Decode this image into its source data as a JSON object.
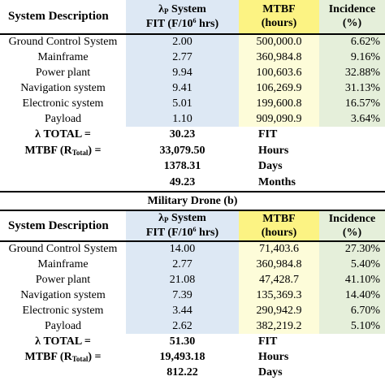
{
  "colors": {
    "fit_column": "#dde8f4",
    "mtbf_column": "#fdfcd9",
    "mtbf_header": "#fcf383",
    "incidence_column": "#e5efda",
    "lambda_total": "#39d6f5",
    "mtbf_total": "#fdfa9b",
    "days": "#c8d9ec",
    "months": "#f6c7a7"
  },
  "headers": {
    "description": "System Description",
    "fit_line1_pre": "λ",
    "fit_line1_sub": "P",
    "fit_line1_post": " System",
    "fit_line2_pre": "FIT (F/10",
    "fit_line2_sup": "6",
    "fit_line2_post": " hrs)",
    "mtbf_line1": "MTBF",
    "mtbf_line2": "(hours)",
    "incidence_line1": "Incidence",
    "incidence_line2": "(%)"
  },
  "summary_labels": {
    "lambda_total": "λ TOTAL =",
    "mtbf_pre": "MTBF (R",
    "mtbf_sub": "Total",
    "mtbf_post": ") ="
  },
  "table_a": {
    "rows": [
      {
        "system": "Ground Control System",
        "fit": "2.00",
        "mtbf": "500,000.0",
        "incidence": "6.62%"
      },
      {
        "system": "Mainframe",
        "fit": "2.77",
        "mtbf": "360,984.8",
        "incidence": "9.16%"
      },
      {
        "system": "Power plant",
        "fit": "9.94",
        "mtbf": "100,603.6",
        "incidence": "32.88%"
      },
      {
        "system": "Navigation system",
        "fit": "9.41",
        "mtbf": "106,269.9",
        "incidence": "31.13%"
      },
      {
        "system": "Electronic system",
        "fit": "5.01",
        "mtbf": "199,600.8",
        "incidence": "16.57%"
      },
      {
        "system": "Payload",
        "fit": "1.10",
        "mtbf": "909,090.9",
        "incidence": "3.64%"
      }
    ],
    "lambda_total": "30.23",
    "lambda_unit": "FIT",
    "mtbf_total": "33,079.50",
    "mtbf_unit": "Hours",
    "days": "1378.31",
    "days_unit": "Days",
    "months": "49.23",
    "months_unit": "Months"
  },
  "caption_b": "Military Drone (b)",
  "table_b": {
    "rows": [
      {
        "system": "Ground Control System",
        "fit": "14.00",
        "mtbf": "71,403.6",
        "incidence": "27.30%"
      },
      {
        "system": "Mainframe",
        "fit": "2.77",
        "mtbf": "360,984.8",
        "incidence": "5.40%"
      },
      {
        "system": "Power plant",
        "fit": "21.08",
        "mtbf": "47,428.7",
        "incidence": "41.10%"
      },
      {
        "system": "Navigation system",
        "fit": "7.39",
        "mtbf": "135,369.3",
        "incidence": "14.40%"
      },
      {
        "system": "Electronic system",
        "fit": "3.44",
        "mtbf": "290,942.9",
        "incidence": "6.70%"
      },
      {
        "system": "Payload",
        "fit": "2.62",
        "mtbf": "382,219.2",
        "incidence": "5.10%"
      }
    ],
    "lambda_total": "51.30",
    "lambda_unit": "FIT",
    "mtbf_total": "19,493.18",
    "mtbf_unit": "Hours",
    "days": "812.22",
    "days_unit": "Days"
  }
}
